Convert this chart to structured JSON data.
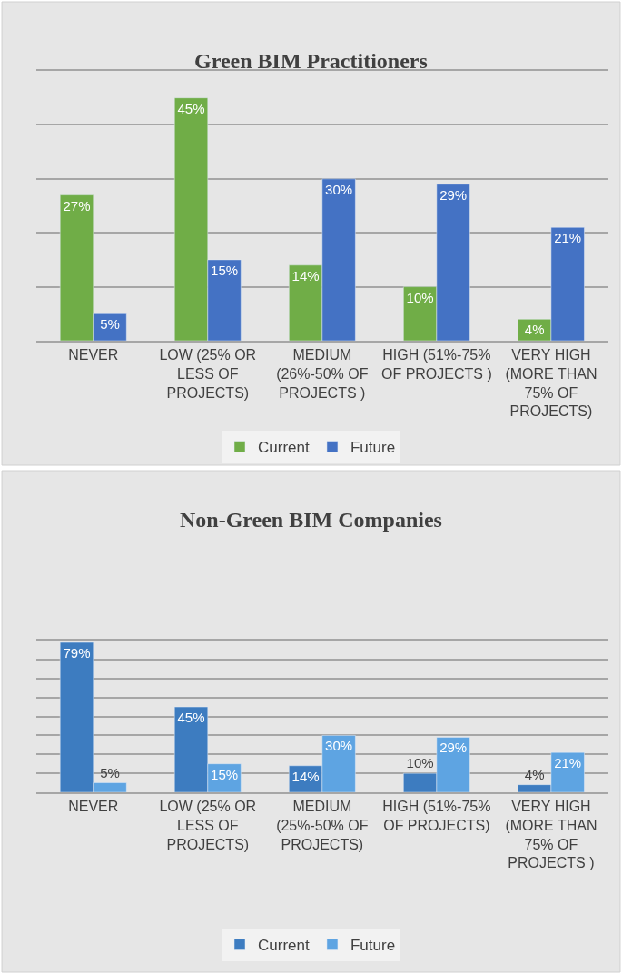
{
  "chart_data": [
    {
      "type": "bar",
      "title": "Green BIM Practitioners",
      "categories": [
        "NEVER",
        "LOW (25% OR LESS OF PROJECTS)",
        "MEDIUM (26%-50% OF PROJECTS )",
        "HIGH (51%-75% OF PROJECTS )",
        "VERY HIGH (MORE THAN 75% OF PROJECTS)"
      ],
      "series": [
        {
          "name": "Current",
          "color": "#70ad47",
          "values": [
            27,
            45,
            14,
            10,
            4
          ],
          "value_labels": [
            "27%",
            "45%",
            "14%",
            "10%",
            "4%"
          ]
        },
        {
          "name": "Future",
          "color": "#4472c4",
          "values": [
            5,
            15,
            30,
            29,
            21
          ],
          "value_labels": [
            "5%",
            "15%",
            "30%",
            "29%",
            "21%"
          ]
        }
      ],
      "ylim": [
        0,
        50
      ],
      "yticks": [
        {
          "value": 0,
          "label": null
        },
        {
          "value": 10,
          "label": null
        },
        {
          "value": 20,
          "label": null
        },
        {
          "value": 30,
          "label": null
        },
        {
          "value": 40,
          "label": null
        },
        {
          "value": 50,
          "label": null
        }
      ],
      "tick_labels": "x",
      "grid": "y",
      "legend": "bottom"
    },
    {
      "type": "bar",
      "title": "Non-Green BIM Companies",
      "categories": [
        "NEVER",
        "LOW (25% OR LESS OF PROJECTS)",
        "MEDIUM (25%-50% OF PROJECTS)",
        "HIGH (51%-75% OF PROJECTS)",
        "VERY HIGH (MORE THAN 75% OF PROJECTS )"
      ],
      "series": [
        {
          "name": "Current",
          "color": "#3d7cc0",
          "values": [
            79,
            45,
            14,
            10,
            4
          ],
          "value_labels": [
            "79%",
            "45%",
            "14%",
            "10%",
            "4%"
          ]
        },
        {
          "name": "Future",
          "color": "#5ea4e2",
          "values": [
            5,
            15,
            30,
            29,
            21
          ],
          "value_labels": [
            "5%",
            "15%",
            "30%",
            "29%",
            "21%"
          ]
        }
      ],
      "ylim": [
        0,
        80
      ],
      "yticks": [
        {
          "value": 0,
          "label": null
        },
        {
          "value": 10,
          "label": null
        },
        {
          "value": 20,
          "label": null
        },
        {
          "value": 30,
          "label": null
        },
        {
          "value": 40,
          "label": null
        },
        {
          "value": 50,
          "label": null
        },
        {
          "value": 60,
          "label": null
        },
        {
          "value": 70,
          "label": null
        },
        {
          "value": 80,
          "label": null
        }
      ],
      "tick_labels": "x",
      "grid": "y",
      "legend": "bottom"
    }
  ]
}
